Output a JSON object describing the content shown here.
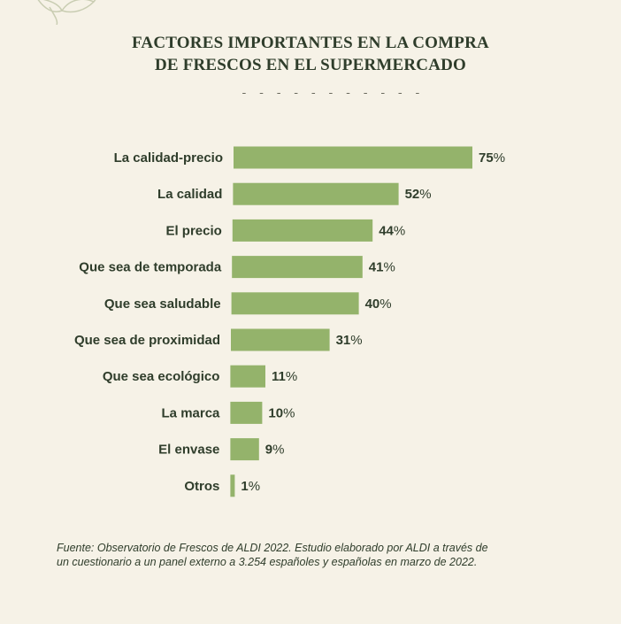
{
  "title_line1": "FACTORES IMPORTANTES EN LA COMPRA",
  "title_line2": "DE FRESCOS EN EL SUPERMERCADO",
  "divider": "- - - - - - - - - - -",
  "source_line1": "Fuente: Observatorio de Frescos de ALDI 2022. Estudio elaborado por ALDI a través de",
  "source_line2": "un cuestionario a un panel externo a 3.254 españoles y españolas en marzo de 2022.",
  "colors": {
    "bar": "#94b36b",
    "background": "#f6f2e7",
    "text": "#2f3d2b"
  },
  "chart_data": {
    "type": "bar",
    "orientation": "horizontal",
    "title": "FACTORES IMPORTANTES EN LA COMPRA DE FRESCOS EN EL SUPERMERCADO",
    "categories": [
      "La calidad-precio",
      "La calidad",
      "El precio",
      "Que sea de temporada",
      "Que sea saludable",
      "Que sea de proximidad",
      "Que sea ecológico",
      "La marca",
      "El envase",
      "Otros"
    ],
    "values": [
      75,
      52,
      44,
      41,
      40,
      31,
      11,
      10,
      9,
      1
    ],
    "value_suffix": "%",
    "xlim": [
      0,
      75
    ],
    "grid": false,
    "legend": "none"
  }
}
